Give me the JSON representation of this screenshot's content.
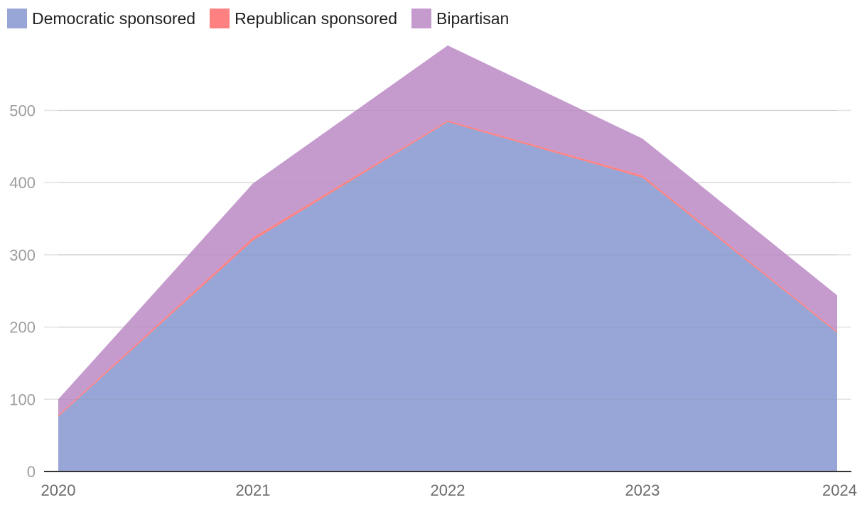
{
  "chart_data": {
    "type": "area",
    "stacked": true,
    "title": "",
    "xlabel": "",
    "ylabel": "",
    "x": [
      "2020",
      "2021",
      "2022",
      "2023",
      "2024"
    ],
    "ylim": [
      0,
      590
    ],
    "yticks": [
      0,
      100,
      200,
      300,
      400,
      500
    ],
    "grid": true,
    "legend_position": "top-left",
    "series": [
      {
        "name": "Democratic sponsored",
        "color": "#97a6d6",
        "values": [
          76,
          320,
          484,
          407,
          192
        ]
      },
      {
        "name": "Republican sponsored",
        "color": "#ff8080",
        "values": [
          2,
          4,
          2,
          3,
          2
        ]
      },
      {
        "name": "Bipartisan",
        "color": "#c59bce",
        "values": [
          22,
          75,
          104,
          51,
          50
        ]
      }
    ]
  }
}
